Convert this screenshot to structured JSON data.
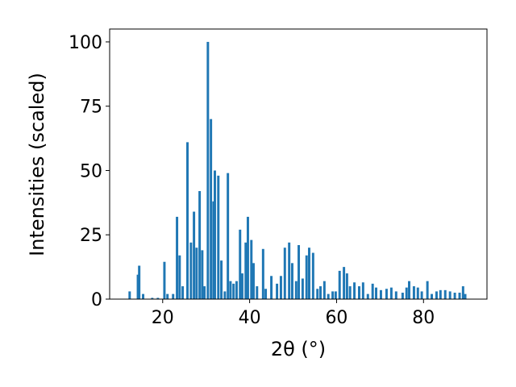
{
  "chart_data": {
    "type": "bar",
    "xlabel": "2θ (°)",
    "ylabel": "Intensities (scaled)",
    "color": "#1f77b4",
    "x": [
      12.4,
      14.3,
      14.6,
      15.5,
      17.6,
      18.9,
      20.4,
      21.1,
      22.4,
      23.3,
      23.9,
      24.6,
      25.7,
      26.5,
      27.2,
      27.8,
      28.5,
      29.1,
      29.6,
      30.4,
      31.1,
      31.7,
      32.0,
      32.8,
      33.5,
      34.3,
      35.0,
      35.6,
      36.3,
      37.0,
      37.8,
      38.3,
      39.1,
      39.6,
      40.4,
      40.9,
      41.7,
      43.1,
      43.7,
      45.0,
      46.3,
      47.2,
      48.1,
      49.1,
      49.8,
      50.7,
      51.3,
      52.2,
      53.1,
      53.7,
      54.6,
      55.6,
      56.3,
      57.2,
      58.1,
      59.1,
      59.8,
      60.7,
      61.7,
      62.4,
      63.1,
      64.1,
      65.2,
      66.1,
      67.2,
      68.3,
      69.1,
      70.2,
      71.5,
      72.6,
      73.7,
      75.2,
      76.1,
      76.7,
      77.8,
      78.7,
      79.6,
      80.9,
      81.9,
      83.0,
      83.9,
      85.0,
      86.1,
      87.2,
      88.3,
      89.1,
      89.6
    ],
    "values": [
      3,
      9.5,
      13,
      2,
      0.5,
      0.5,
      14.5,
      2,
      2,
      32,
      17,
      5,
      61,
      22,
      34,
      20,
      42,
      19,
      5,
      100,
      70,
      38,
      50,
      48,
      15,
      3,
      49,
      7,
      6,
      7,
      27,
      10,
      22,
      32,
      23,
      14,
      5,
      19.5,
      4,
      9,
      6,
      9,
      20,
      22,
      14,
      7,
      21,
      8,
      17,
      20,
      18,
      4,
      5,
      7,
      2,
      3,
      3,
      11,
      12.5,
      10,
      5,
      6.5,
      5,
      6.5,
      2,
      6,
      4.5,
      3.5,
      4,
      4.5,
      3,
      2.5,
      4.5,
      7,
      5,
      4.5,
      3,
      7,
      2,
      3,
      3.5,
      3.5,
      3,
      2.5,
      2.5,
      5,
      2
    ],
    "xlim": [
      7.8,
      94.6
    ],
    "ylim": [
      0,
      105
    ],
    "xticks": [
      20,
      40,
      60,
      80
    ],
    "yticks": [
      0,
      25,
      50,
      75,
      100
    ]
  }
}
